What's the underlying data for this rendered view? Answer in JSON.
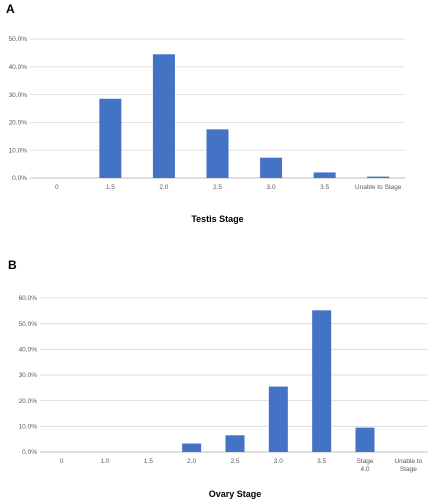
{
  "panels": {
    "a_letter": "A",
    "b_letter": "B"
  },
  "chart_data": [
    {
      "type": "bar",
      "color": "#4472c4",
      "categories": [
        "0",
        "1.5",
        "2.0",
        "2.5",
        "3.0",
        "3.5",
        "Unable to Stage"
      ],
      "values": [
        0,
        28.5,
        44.5,
        17.5,
        7.3,
        2.0,
        0.5
      ],
      "ylim": [
        0,
        50
      ],
      "yticks": [
        "0.0%",
        "10.0%",
        "20.0%",
        "30.0%",
        "40.0%",
        "50.0%"
      ],
      "xlabel": "Testis Stage",
      "ylabel": "",
      "grid": true
    },
    {
      "type": "bar",
      "color": "#4472c4",
      "categories": [
        "0",
        "1.0",
        "1.5",
        "2.0",
        "2.5",
        "3.0",
        "3.5",
        "Stage 4.0",
        "Unable to Stage"
      ],
      "values": [
        0,
        0,
        0,
        3.3,
        6.5,
        25.5,
        55.2,
        9.5,
        0
      ],
      "ylim": [
        0,
        60
      ],
      "yticks": [
        "0.0%",
        "10.0%",
        "20.0%",
        "30.0%",
        "40.0%",
        "50.0%",
        "60.0%"
      ],
      "xlabel": "Ovary Stage",
      "ylabel": "",
      "grid": true
    }
  ]
}
